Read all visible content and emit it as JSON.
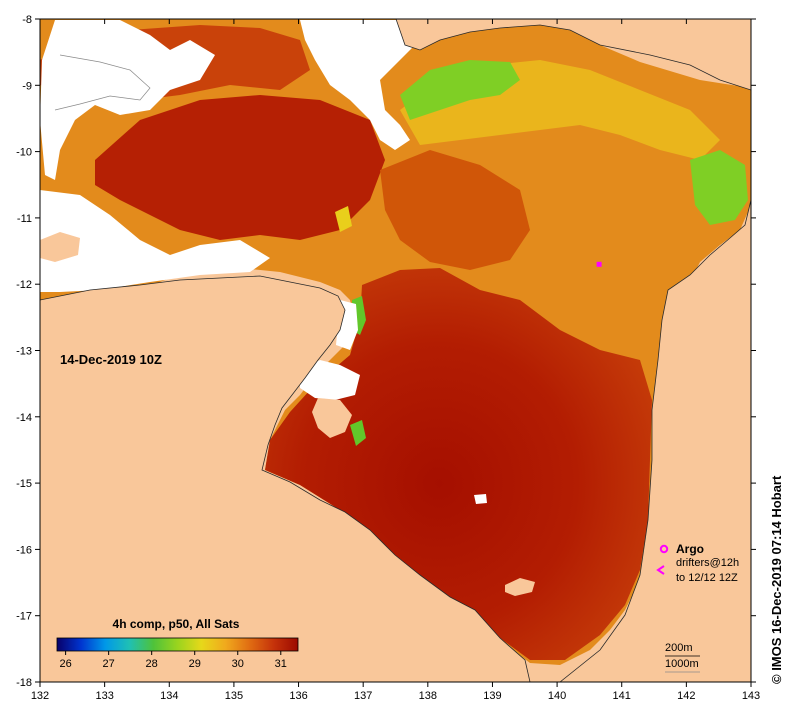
{
  "map": {
    "timestamp_label": "14-Dec-2019 10Z",
    "credit": "© IMOS 16-Dec-2019 07:14 Hobart",
    "colors": {
      "land": "#f9c79a",
      "no_data": "#ffffff",
      "sst_hot": "#a50f00",
      "sst_warm": "#d14a00",
      "sst_mid": "#e2821b",
      "sst_orange": "#eca21e",
      "sst_yellow": "#e9cf1b",
      "sst_green": "#62c72a",
      "argo_marker": "#ff00ff"
    }
  },
  "axes": {
    "x_ticks": [
      "132",
      "133",
      "134",
      "135",
      "136",
      "137",
      "138",
      "139",
      "140",
      "141",
      "142",
      "143"
    ],
    "y_ticks": [
      "-8",
      "-9",
      "-10",
      "-11",
      "-12",
      "-13",
      "-14",
      "-15",
      "-16",
      "-17",
      "-18"
    ]
  },
  "colorbar": {
    "title": "4h comp, p50, All Sats",
    "labels": [
      "26",
      "27",
      "28",
      "29",
      "30",
      "31"
    ],
    "range": [
      25.8,
      31.4
    ],
    "stops": [
      "#08006a",
      "#0035d0",
      "#0098e8",
      "#1fc0b4",
      "#4fc23a",
      "#9ad41e",
      "#e7d81a",
      "#f0a91d",
      "#e06c12",
      "#c5320a",
      "#9c0a00"
    ]
  },
  "legend": {
    "argo_label": "Argo",
    "drifters_label": "drifters@12h",
    "drifters_range": "to 12/12 12Z",
    "contour_200": "200m",
    "contour_1000": "1000m"
  },
  "argo_float": {
    "lon": 140.65,
    "lat": -11.7
  }
}
